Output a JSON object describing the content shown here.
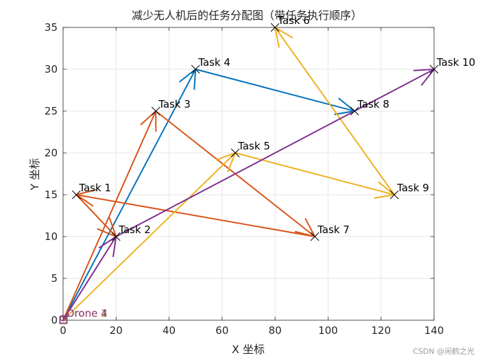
{
  "chart_data": {
    "type": "line",
    "title": "减少无人机后的任务分配图（带任务执行顺序）",
    "xlabel": "X 坐标",
    "ylabel": "Y 坐标",
    "xlim": [
      0,
      140
    ],
    "ylim": [
      0,
      35
    ],
    "xticks": [
      0,
      20,
      40,
      60,
      80,
      100,
      120,
      140
    ],
    "yticks": [
      0,
      5,
      10,
      15,
      20,
      25,
      30,
      35
    ],
    "grid": true,
    "tasks": [
      {
        "label": "Task 1",
        "x": 5,
        "y": 15
      },
      {
        "label": "Task 2",
        "x": 20,
        "y": 10
      },
      {
        "label": "Task 3",
        "x": 35,
        "y": 25
      },
      {
        "label": "Task 4",
        "x": 50,
        "y": 30
      },
      {
        "label": "Task 5",
        "x": 65,
        "y": 20
      },
      {
        "label": "Task 6",
        "x": 80,
        "y": 35
      },
      {
        "label": "Task 7",
        "x": 95,
        "y": 10
      },
      {
        "label": "Task 8",
        "x": 110,
        "y": 25
      },
      {
        "label": "Task 9",
        "x": 125,
        "y": 15
      },
      {
        "label": "Task 10",
        "x": 140,
        "y": 30
      }
    ],
    "drones": [
      {
        "label": "Drone 1",
        "color": "#0072BD",
        "route": [
          [
            0,
            0
          ],
          [
            50,
            30
          ],
          [
            110,
            25
          ]
        ]
      },
      {
        "label": "Drone 2",
        "color": "#D95319",
        "route": [
          [
            0,
            0
          ],
          [
            35,
            25
          ],
          [
            95,
            10
          ],
          [
            5,
            15
          ],
          [
            20,
            10
          ]
        ]
      },
      {
        "label": "Drone 3",
        "color": "#EDB120",
        "route": [
          [
            0,
            0
          ],
          [
            65,
            20
          ],
          [
            125,
            15
          ],
          [
            80,
            35
          ]
        ]
      },
      {
        "label": "Drone 4",
        "color": "#7E2F8E",
        "route": [
          [
            0,
            0
          ],
          [
            20,
            10
          ],
          [
            140,
            30
          ]
        ]
      }
    ],
    "depot": {
      "x": 0,
      "y": 0
    }
  },
  "watermark": "CSDN @闲鹤之光"
}
